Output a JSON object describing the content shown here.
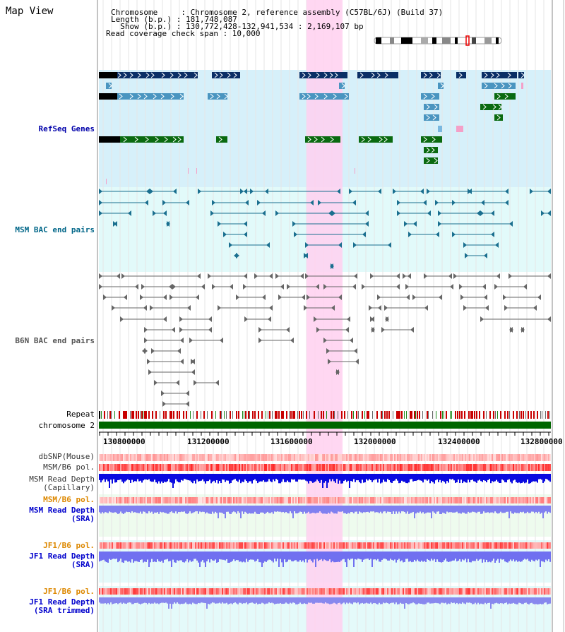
{
  "view_title": "Map View",
  "info_lines": [
    "Chromosome     : Chromosome 2, reference assembly (C57BL/6J) (Build 37)",
    "Length (b.p.) : 181,748,087",
    "  Show (b.p.) : 130,772,428-132,941,534 : 2,169,107 bp",
    "Read coverage check span : 10,000"
  ],
  "tracks": {
    "refseq": "RefSeq Genes",
    "msm_bac": "MSM BAC end pairs",
    "b6n_bac": "B6N BAC end pairs",
    "repeat": "Repeat",
    "chromosome": "chromosome 2",
    "dbsnp": "dbSNP(Mouse)",
    "msm_b6_pol": "MSM/B6 pol.",
    "msm_depth_cap_1": "MSM Read Depth",
    "msm_depth_cap_2": "(Capillary)",
    "msm_b6_pol_sra": "MSM/B6 pol.",
    "msm_depth_sra_1": "MSM Read Depth",
    "msm_depth_sra_2": "(SRA)",
    "jf1_b6_pol": "JF1/B6 pol.",
    "jf1_depth_sra_1": "JF1 Read Depth",
    "jf1_depth_sra_2": "(SRA)",
    "jf1_b6_pol_trim": "JF1/B6 pol.",
    "jf1_depth_trim_1": "JF1 Read Depth",
    "jf1_depth_trim_2": "(SRA trimmed)"
  },
  "axis_ticks": [
    "130800000",
    "131200000",
    "131600000",
    "132000000",
    "132400000",
    "132800000"
  ],
  "colors": {
    "refseq_label": "#0000aa",
    "msm_label": "#006688",
    "b6n_label": "#555555",
    "pol_label": "#dd8800",
    "depth_label": "#0000cc",
    "highlight": "#ffd0f0",
    "chromosome_bar": "#006600"
  }
}
